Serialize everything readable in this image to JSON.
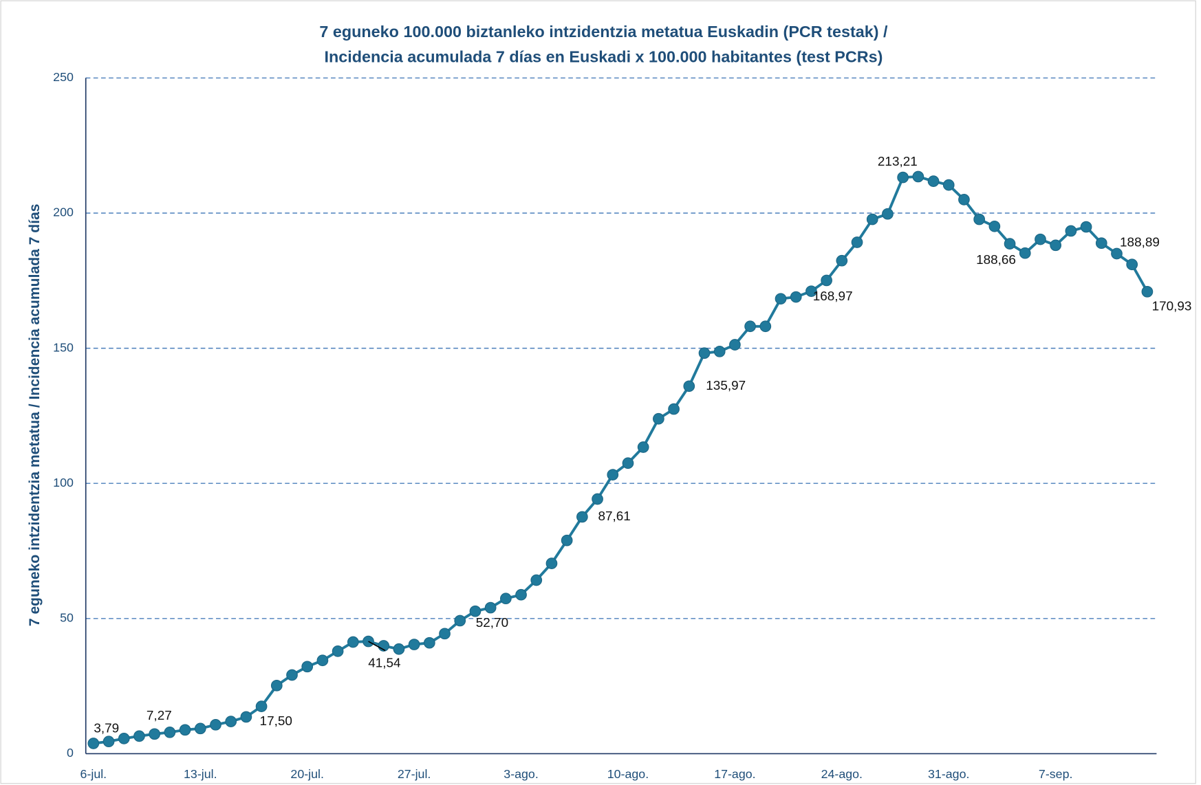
{
  "chart_data": {
    "type": "line",
    "title": [
      "7 eguneko 100.000 biztanleko intzidentzia metatua Euskadin (PCR testak) /",
      "Incidencia acumulada 7 días en Euskadi x 100.000 habitantes (test PCRs)"
    ],
    "y_label": "7 eguneko intzidentzia metatua / Incidencia acumulada 7 días",
    "categories": [
      "6-jul.",
      null,
      null,
      null,
      null,
      null,
      null,
      "13-jul.",
      null,
      null,
      null,
      null,
      null,
      null,
      "20-jul.",
      null,
      null,
      null,
      null,
      null,
      null,
      "27-jul.",
      null,
      null,
      null,
      null,
      null,
      null,
      "3-ago.",
      null,
      null,
      null,
      null,
      null,
      null,
      "10-ago.",
      null,
      null,
      null,
      null,
      null,
      null,
      "17-ago.",
      null,
      null,
      null,
      null,
      null,
      null,
      "24-ago.",
      null,
      null,
      null,
      null,
      null,
      null,
      "31-ago.",
      null,
      null,
      null,
      null,
      null,
      null,
      "7-sep.",
      null,
      null,
      null,
      null,
      null,
      null
    ],
    "series": [
      {
        "name": "Incidencia acumulada",
        "color": "#217a9c",
        "values": [
          3.79,
          4.5,
          5.6,
          6.5,
          7.27,
          7.9,
          8.8,
          9.3,
          10.7,
          11.9,
          13.6,
          17.5,
          25.2,
          29.1,
          32.2,
          34.5,
          37.9,
          41.3,
          41.54,
          39.9,
          38.7,
          40.4,
          41.0,
          44.4,
          49.2,
          52.7,
          54.0,
          57.4,
          58.8,
          64.2,
          70.4,
          78.9,
          87.61,
          94.2,
          103.2,
          107.5,
          113.4,
          123.9,
          127.5,
          135.97,
          148.2,
          148.8,
          151.3,
          158.1,
          158.1,
          168.3,
          168.97,
          171.1,
          175.1,
          182.4,
          189.2,
          197.7,
          199.7,
          213.21,
          213.5,
          211.8,
          210.4,
          205.0,
          197.7,
          195.1,
          188.66,
          185.2,
          190.3,
          188.1,
          193.4,
          194.9,
          188.89,
          185.0,
          181.0,
          170.93
        ],
        "value_labels": [
          "3,79",
          null,
          null,
          null,
          "7,27",
          null,
          null,
          null,
          null,
          null,
          null,
          "17,50",
          null,
          null,
          null,
          null,
          null,
          null,
          "41,54",
          null,
          null,
          null,
          null,
          null,
          null,
          "52,70",
          null,
          null,
          null,
          null,
          null,
          null,
          "87,61",
          null,
          null,
          null,
          null,
          null,
          null,
          "135,97",
          null,
          null,
          null,
          null,
          null,
          null,
          "168,97",
          null,
          null,
          null,
          null,
          null,
          null,
          "213,21",
          null,
          null,
          null,
          null,
          null,
          null,
          "188,66",
          null,
          null,
          null,
          null,
          null,
          "188,89",
          null,
          null,
          "170,93"
        ]
      }
    ],
    "ylim": [
      0,
      250
    ],
    "yticks": [
      0,
      50,
      100,
      150,
      200,
      250
    ],
    "grid": true
  }
}
